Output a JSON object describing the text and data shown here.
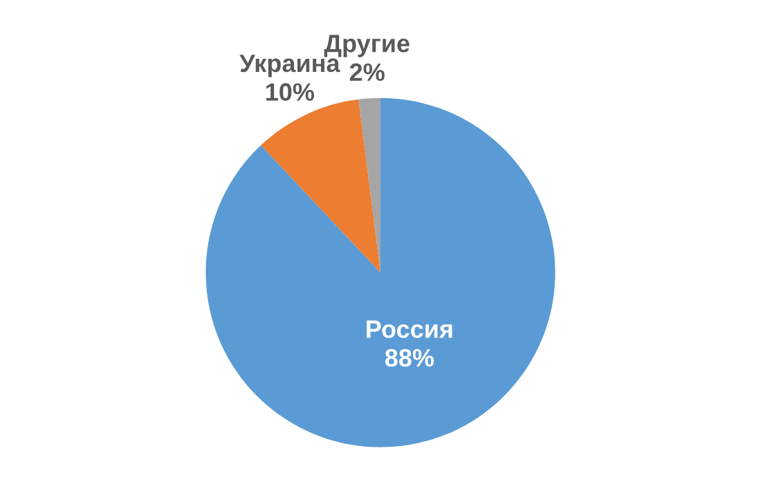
{
  "chart_data": {
    "type": "pie",
    "categories": [
      "Россия",
      "Украина",
      "Другие"
    ],
    "values": [
      88,
      10,
      2
    ],
    "colors": [
      "#5b9bd5",
      "#ed7d31",
      "#a5a5a5"
    ],
    "value_labels": [
      "88%",
      "10%",
      "2%"
    ],
    "legend": false
  }
}
